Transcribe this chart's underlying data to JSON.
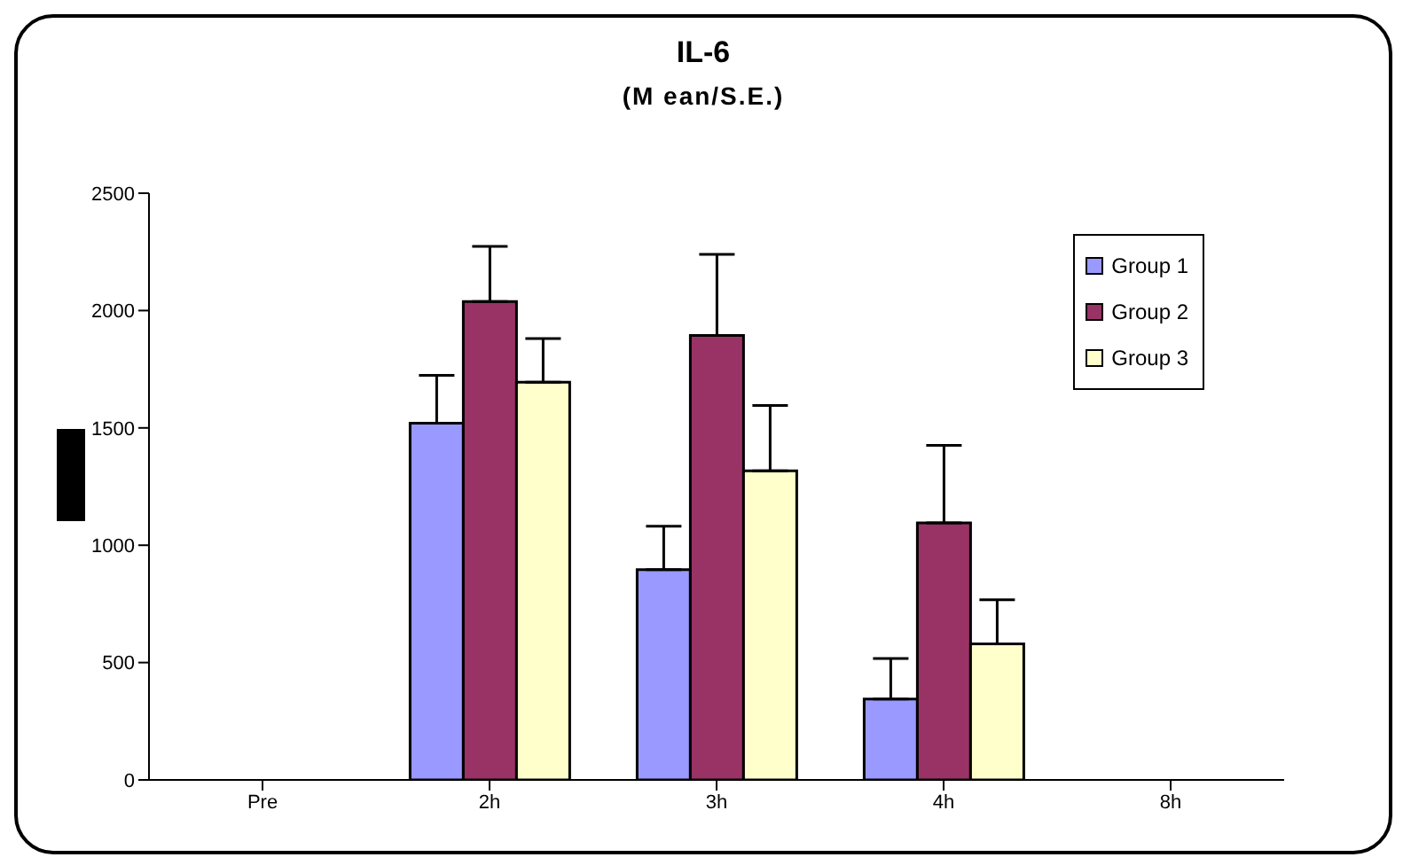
{
  "chart_data": {
    "type": "bar",
    "title": "IL-6",
    "subtitle": "(M ean/S.E.)",
    "categories": [
      "Pre",
      "2h",
      "3h",
      "4h",
      "8h"
    ],
    "series": [
      {
        "name": "Group 1",
        "color": "#9999ff",
        "values": [
          0,
          1520,
          896,
          345,
          0
        ],
        "errors": [
          null,
          [
            1520,
            1724
          ],
          [
            896,
            1081
          ],
          [
            345,
            517
          ],
          null
        ]
      },
      {
        "name": "Group 2",
        "color": "#993366",
        "values": [
          0,
          2038,
          1894,
          1095,
          0
        ],
        "errors": [
          null,
          [
            2038,
            2273
          ],
          [
            1894,
            2239
          ],
          [
            1095,
            1426
          ],
          null
        ]
      },
      {
        "name": "Group 3",
        "color": "#ffffcc",
        "values": [
          0,
          1695,
          1317,
          580,
          0
        ],
        "errors": [
          null,
          [
            1695,
            1881
          ],
          [
            1317,
            1596
          ],
          [
            580,
            768
          ],
          null
        ]
      }
    ],
    "ylim": [
      0,
      2500
    ],
    "yticks": [
      0,
      500,
      1000,
      1500,
      2000,
      2500
    ],
    "legend": "top right"
  }
}
